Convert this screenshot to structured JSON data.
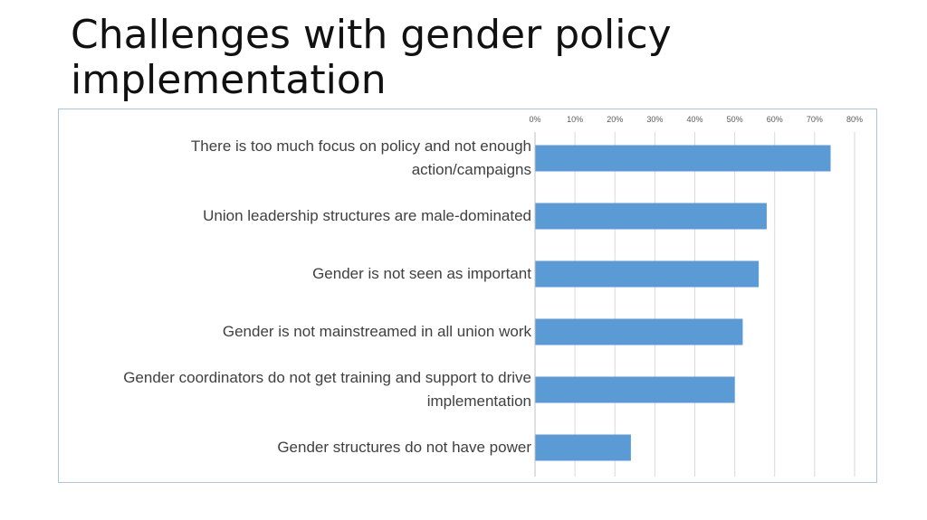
{
  "slide": {
    "title": "Challenges with gender policy implementation"
  },
  "chart_data": {
    "type": "bar",
    "orientation": "horizontal",
    "title": "",
    "xlabel": "",
    "ylabel": "",
    "categories": [
      "There is too much focus on policy and not enough action/campaigns",
      "Union leadership structures are male-dominated",
      "Gender is not seen as important",
      "Gender is not mainstreamed in all union work",
      "Gender coordinators do not get training and support to drive implementation",
      "Gender structures do not have power"
    ],
    "values": [
      0.74,
      0.58,
      0.56,
      0.52,
      0.5,
      0.24
    ],
    "xlim": [
      0,
      0.8
    ],
    "ticks": [
      "0%",
      "10%",
      "20%",
      "30%",
      "40%",
      "50%",
      "60%",
      "70%",
      "80%"
    ],
    "axis_position": "top",
    "grid": true,
    "legend": "none",
    "bar_color": "#5b9bd5",
    "grid_color": "#d9d9d9"
  }
}
